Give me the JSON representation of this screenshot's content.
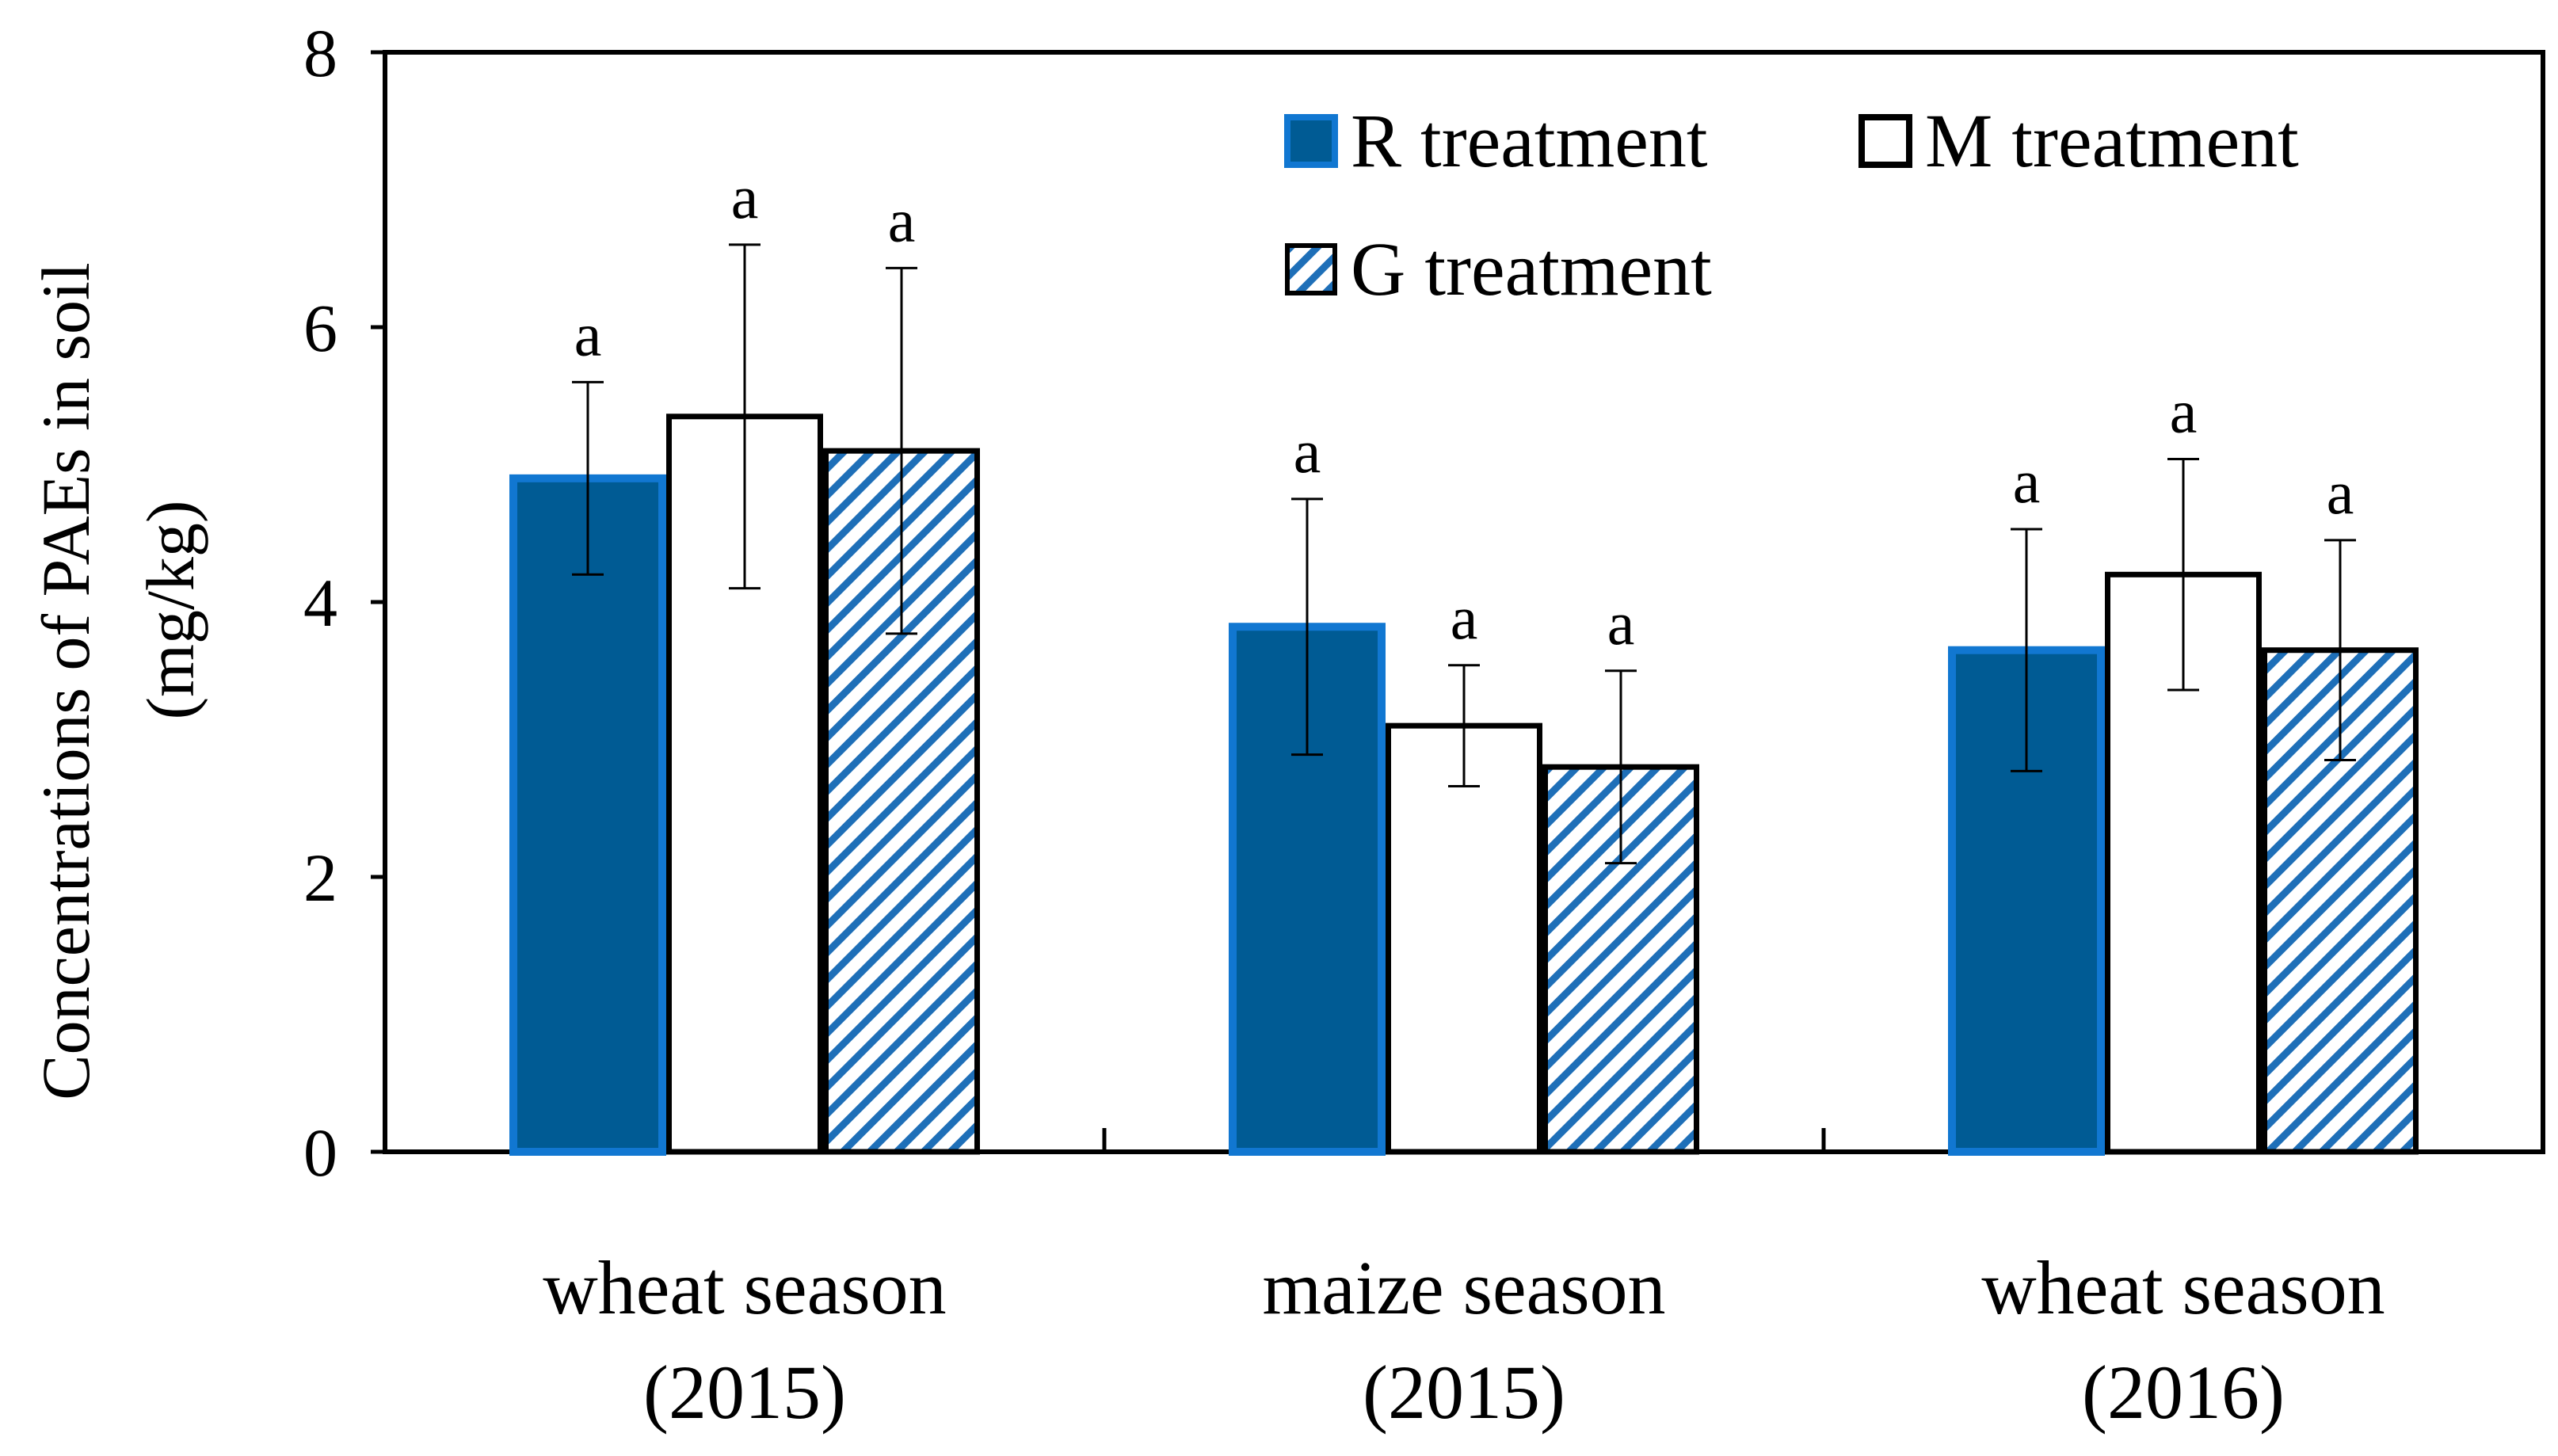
{
  "chart_data": {
    "type": "bar",
    "title": "",
    "xlabel": "",
    "ylabel": [
      "Concentrations of PAEs in soil",
      "(mg/kg)"
    ],
    "ylim": [
      0,
      8
    ],
    "yticks": [
      0,
      2,
      4,
      6,
      8
    ],
    "grid": false,
    "legend_position": "top-right",
    "categories": [
      [
        "wheat season",
        "(2015)"
      ],
      [
        "maize season",
        "(2015)"
      ],
      [
        "wheat season",
        "(2016)"
      ]
    ],
    "series": [
      {
        "name": "R treatment",
        "style": "solid",
        "fill": "#005b94",
        "edge": "#1177d1",
        "values": [
          4.9,
          3.82,
          3.65
        ],
        "errors": [
          0.7,
          0.93,
          0.88
        ],
        "labels": [
          "a",
          "a",
          "a"
        ]
      },
      {
        "name": "M treatment",
        "style": "outline",
        "fill": "#ffffff",
        "edge": "#000000",
        "values": [
          5.35,
          3.1,
          4.2
        ],
        "errors": [
          1.25,
          0.44,
          0.84
        ],
        "labels": [
          "a",
          "a",
          "a"
        ]
      },
      {
        "name": "G treatment",
        "style": "hatched",
        "fill": "#ffffff",
        "edge": "#1e6fb8",
        "values": [
          5.1,
          2.8,
          3.65
        ],
        "errors": [
          1.33,
          0.7,
          0.8
        ],
        "labels": [
          "a",
          "a",
          "a"
        ]
      }
    ]
  }
}
